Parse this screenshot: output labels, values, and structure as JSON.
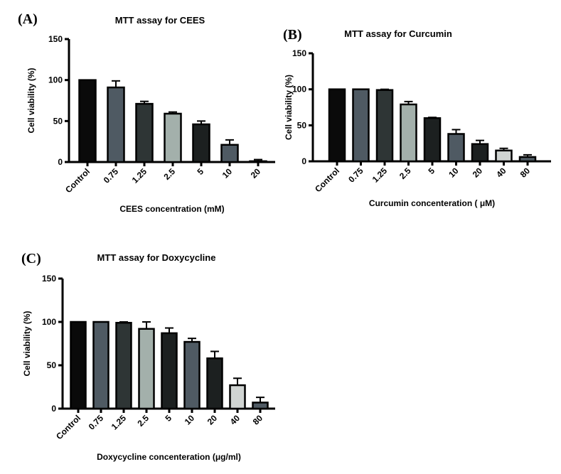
{
  "chart_data": [
    {
      "type": "bar",
      "panel": "(A)",
      "title": "MTT assay for CEES",
      "xlabel": "CEES concentration (mM)",
      "ylabel": "Cell viability (%)",
      "ylim": [
        0,
        150
      ],
      "yticks": [
        0,
        50,
        100,
        150
      ],
      "categories": [
        "Control",
        "0.75",
        "1.25",
        "2.5",
        "5",
        "10",
        "20"
      ],
      "values": [
        100,
        91,
        71,
        59,
        46,
        21,
        1
      ],
      "errors": [
        0,
        8,
        3,
        2,
        4,
        6,
        2
      ],
      "colors": [
        "#0a0a0a",
        "#4f5a63",
        "#2e3535",
        "#a3b0ab",
        "#1c2020",
        "#4f5a63",
        "#1c2020"
      ]
    },
    {
      "type": "bar",
      "panel": "(B)",
      "title": "MTT assay for Curcumin",
      "xlabel": "Curcumin concenteration ( μM)",
      "ylabel": "Cell viability (%)",
      "ylim": [
        0,
        150
      ],
      "yticks": [
        0,
        50,
        100,
        150
      ],
      "categories": [
        "Control",
        "0.75",
        "1.25",
        "2.5",
        "5",
        "10",
        "20",
        "40",
        "80"
      ],
      "values": [
        100,
        100,
        99,
        79,
        60,
        38,
        24,
        15,
        6
      ],
      "errors": [
        0,
        0,
        1,
        4,
        1,
        6,
        5,
        3,
        3
      ],
      "colors": [
        "#0a0a0a",
        "#4f5a63",
        "#2e3535",
        "#a3b0ab",
        "#1c2020",
        "#4f5a63",
        "#1c2020",
        "#d0d4d2",
        "#4f5a63"
      ]
    },
    {
      "type": "bar",
      "panel": "(C)",
      "title": "MTT assay for Doxycycline",
      "xlabel": "Doxycycline concenteration (μg/ml)",
      "ylabel": "Cell viability (%)",
      "ylim": [
        0,
        150
      ],
      "yticks": [
        0,
        50,
        100,
        150
      ],
      "categories": [
        "Control",
        "0.75",
        "1.25",
        "2.5",
        "5",
        "10",
        "20",
        "40",
        "80"
      ],
      "values": [
        100,
        100,
        99,
        92,
        87,
        77,
        58,
        27,
        7
      ],
      "errors": [
        0,
        0,
        1,
        8,
        6,
        4,
        8,
        8,
        6
      ],
      "colors": [
        "#0a0a0a",
        "#4f5a63",
        "#2e3535",
        "#a3b0ab",
        "#1c2020",
        "#4f5a63",
        "#1c2020",
        "#d0d4d2",
        "#4f5a63"
      ]
    }
  ]
}
